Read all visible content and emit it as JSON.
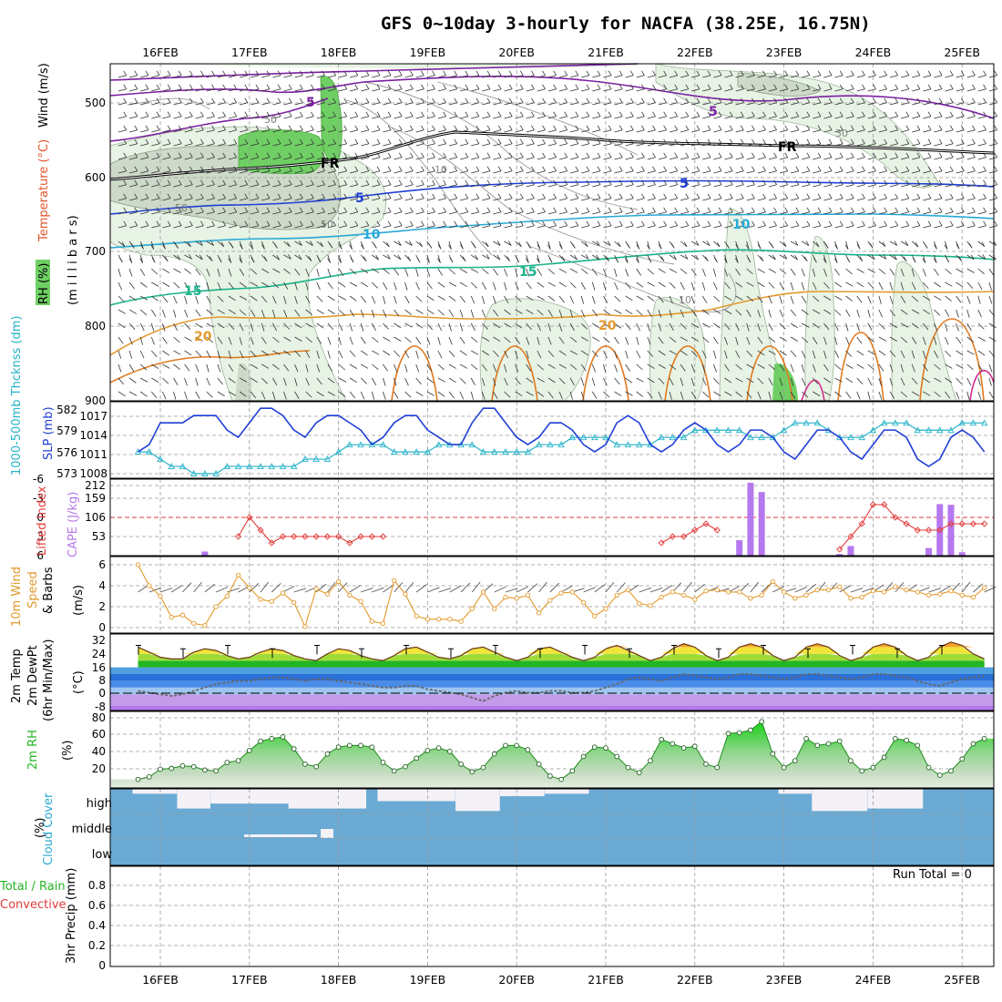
{
  "title": "GFS 0~10day 3-hourly for NACFA (38.25E, 16.75N)",
  "dates": [
    "16FEB",
    "17FEB",
    "18FEB",
    "19FEB",
    "20FEB",
    "21FEB",
    "22FEB",
    "23FEB",
    "24FEB",
    "25FEB"
  ],
  "panels": {
    "upper": {
      "labels": {
        "rh": "RH (%)",
        "temp": "Temperature (°C)",
        "wind": "Wind (m/s)",
        "pres": "(m i l l i b a r s)"
      },
      "yticks": [
        "500",
        "600",
        "700",
        "800",
        "900"
      ],
      "contour_labels": {
        "c5a": "5",
        "c5b": "5",
        "c5c": "5",
        "c5d": "5",
        "fr1": "FR",
        "fr2": "FR",
        "c10a": "10",
        "c10b": "10",
        "c15a": "15",
        "c15b": "15",
        "c20a": "20",
        "c20b": "20",
        "g10a": "10",
        "g10b": "10",
        "g30": "30",
        "g50a": "50",
        "g50b": "50",
        "g50c": "50"
      }
    },
    "slp": {
      "labels": {
        "thick": "1000-500mb Thcknss (dm)",
        "slp": "SLP (mb)"
      },
      "left_ticks": [
        "582",
        "579",
        "576",
        "573"
      ],
      "right_ticks": [
        "1017",
        "1014",
        "1011",
        "1008"
      ]
    },
    "li": {
      "labels": {
        "li": "Lifted Index",
        "cape": "CAPE (J/kg)"
      },
      "left_ticks": [
        "-6",
        "-3",
        "0",
        "3",
        "6"
      ],
      "right_ticks": [
        "212",
        "159",
        "106",
        "53"
      ]
    },
    "wind10": {
      "labels": {
        "a": "10m Wind",
        "b": "Speed",
        "c": "& Barbs",
        "unit": "(m/s)"
      },
      "ticks": [
        "6",
        "4",
        "2",
        "0"
      ]
    },
    "temp2m": {
      "labels": {
        "a": "2m Temp",
        "b": "2m DewPt",
        "c": "(6hr Min/Max)",
        "unit": "(°C)"
      },
      "ticks": [
        "32",
        "24",
        "16",
        "8",
        "0",
        "-8"
      ]
    },
    "rh2m": {
      "labels": {
        "a": "2m RH",
        "unit": "(%)"
      },
      "ticks": [
        "80",
        "60",
        "40",
        "20"
      ]
    },
    "cloud": {
      "labels": {
        "a": "Cloud Cover",
        "unit": "(%)"
      },
      "levels": [
        "high",
        "middle",
        "low"
      ]
    },
    "precip": {
      "labels": {
        "a": "Total / Rain",
        "b": "Convective",
        "c": "3hr Precip (mm)"
      },
      "ticks": [
        "0.8",
        "0.6",
        "0.4",
        "0.2",
        "0"
      ],
      "run_total": "Run Total = 0"
    }
  },
  "colors": {
    "slp": "#1f3fd6",
    "thick": "#27b3c9",
    "li": "#e33b3b",
    "cape": "#b678ee",
    "wind": "#e3992b",
    "rh": "#22b622",
    "cloud": "#6aaad4"
  },
  "chart_data": [
    {
      "type": "line",
      "name": "SLP",
      "x_start": "15FEB 18Z",
      "x_step_hours": 3,
      "ylabel": "SLP (mb)",
      "ylim": [
        1008,
        1018
      ],
      "values": [
        1011,
        1012,
        1015,
        1015,
        1015,
        1016,
        1016,
        1016,
        1014,
        1013,
        1015,
        1017,
        1017,
        1016,
        1014,
        1013,
        1015,
        1016,
        1016,
        1015,
        1014,
        1012,
        1013,
        1015,
        1016,
        1016,
        1014,
        1013,
        1012,
        1012,
        1015,
        1017,
        1017,
        1015,
        1013,
        1012,
        1013,
        1015,
        1015,
        1014,
        1012,
        1011,
        1012,
        1015,
        1016,
        1015,
        1012,
        1011,
        1012,
        1014,
        1015,
        1014,
        1012,
        1011,
        1012,
        1014,
        1014,
        1013,
        1011,
        1010,
        1012,
        1014,
        1014,
        1013,
        1011,
        1010,
        1012,
        1014,
        1014,
        1013,
        1010,
        1009,
        1010,
        1013,
        1014,
        1013,
        1011,
        1009,
        1011,
        1013,
        1014,
        1013,
        1011,
        1009
      ]
    },
    {
      "type": "line",
      "name": "1000-500mb Thickness",
      "x_start": "15FEB 18Z",
      "x_step_hours": 3,
      "ylabel": "Thcknss (dm)",
      "ylim": [
        573,
        582.5
      ],
      "values": [
        576,
        576,
        575,
        574,
        574,
        573,
        573,
        573,
        574,
        574,
        574,
        574,
        574,
        574,
        574,
        575,
        575,
        575,
        576,
        577,
        577,
        577,
        577,
        576,
        576,
        576,
        576,
        577,
        577,
        577,
        577,
        576,
        576,
        576,
        576,
        576,
        577,
        577,
        577,
        578,
        578,
        578,
        578,
        577,
        577,
        577,
        577,
        578,
        578,
        578,
        579,
        579,
        579,
        579,
        579,
        578,
        578,
        578,
        579,
        580,
        580,
        580,
        579,
        578,
        578,
        578,
        579,
        580,
        580,
        580,
        579,
        579,
        579,
        579,
        580,
        580,
        580,
        580,
        579,
        579,
        579,
        578,
        579,
        579
      ]
    },
    {
      "type": "line",
      "name": "Lifted Index",
      "x_start": "15FEB 18Z",
      "x_step_hours": 3,
      "ylabel": "Lifted Index",
      "ylim": [
        -6,
        6
      ],
      "values": [
        6,
        6,
        6,
        6,
        6,
        6,
        6,
        6,
        6,
        3,
        0,
        2,
        4,
        3,
        3,
        3,
        3,
        3,
        3,
        4,
        3,
        3,
        3,
        6,
        6,
        6,
        6,
        6,
        6,
        6,
        6,
        6,
        6,
        6,
        6,
        6,
        6,
        6,
        6,
        6,
        6,
        6,
        6,
        6,
        6,
        6,
        6,
        4,
        3,
        3,
        2,
        1,
        2,
        6,
        6,
        6,
        6,
        6,
        6,
        6,
        6,
        6,
        6,
        5,
        3,
        1,
        -2,
        -2,
        0,
        1,
        2,
        2,
        2,
        1,
        1,
        1,
        1,
        1,
        1,
        1,
        0,
        0,
        1,
        2
      ]
    },
    {
      "type": "bar",
      "name": "CAPE",
      "ylabel": "CAPE (J/kg)",
      "ylim": [
        0,
        212
      ],
      "bars": [
        {
          "x": "16FEB 12Z",
          "v": 12
        },
        {
          "x": "22FEB 12Z",
          "v": 45
        },
        {
          "x": "22FEB 15Z",
          "v": 212
        },
        {
          "x": "22FEB 18Z",
          "v": 185
        },
        {
          "x": "23FEB 15Z",
          "v": 5
        },
        {
          "x": "23FEB 18Z",
          "v": 28
        },
        {
          "x": "24FEB 15Z",
          "v": 22
        },
        {
          "x": "24FEB 18Z",
          "v": 150
        },
        {
          "x": "24FEB 21Z",
          "v": 148
        },
        {
          "x": "25FEB 00Z",
          "v": 10
        }
      ]
    },
    {
      "type": "line",
      "name": "10m Wind Speed",
      "x_start": "15FEB 18Z",
      "x_step_hours": 3,
      "ylabel": "(m/s)",
      "ylim": [
        0,
        6.5
      ],
      "values": [
        6,
        4,
        3,
        1,
        1.2,
        0.4,
        0.2,
        2,
        3,
        5,
        3.8,
        2.7,
        2.5,
        3.3,
        2.4,
        0.1,
        3.7,
        3.2,
        4.4,
        3.1,
        2.5,
        0.6,
        0.4,
        4.5,
        3.2,
        1.1,
        0.8,
        0.8,
        0.8,
        0.6,
        1.8,
        3.4,
        1.8,
        2.9,
        2.8,
        3.1,
        1.4,
        2.6,
        3.3,
        3.4,
        2.4,
        1.1,
        1.8,
        3.1,
        3.6,
        2.3,
        2.1,
        2.9,
        3.4,
        3.1,
        2.7,
        3.5,
        3.6,
        3.4,
        3.4,
        2.8,
        3.1,
        4.4,
        3.4,
        2.8,
        3.1,
        3.6,
        3.6,
        3.9,
        2.8,
        2.9,
        3.5,
        3.4,
        3.9,
        3.6,
        3.4,
        3.1,
        3.2,
        3.5,
        3.1,
        2.9,
        3.8,
        3.6,
        3.2,
        2.9,
        2.8,
        1.9,
        3,
        3.4
      ]
    },
    {
      "type": "area",
      "name": "2m Temperature",
      "x_start": "15FEB 18Z",
      "x_step_hours": 3,
      "ylabel": "(°C)",
      "ylim": [
        -8,
        32
      ],
      "values": [
        28,
        25,
        22,
        21,
        21,
        25,
        27,
        26,
        23,
        21,
        22,
        25,
        27,
        26,
        23,
        21,
        20,
        24,
        27,
        26,
        23,
        21,
        20,
        23,
        27,
        28,
        25,
        22,
        21,
        23,
        27,
        28,
        25,
        22,
        20,
        22,
        27,
        28,
        25,
        22,
        20,
        22,
        27,
        29,
        26,
        23,
        20,
        22,
        27,
        30,
        28,
        23,
        20,
        22,
        28,
        30,
        28,
        23,
        20,
        22,
        28,
        30,
        28,
        23,
        20,
        22,
        28,
        30,
        28,
        23,
        20,
        22,
        28,
        31,
        29,
        24,
        21,
        22,
        24,
        24,
        23,
        22,
        21,
        24
      ]
    },
    {
      "type": "line",
      "name": "2m Dew Point",
      "x_start": "15FEB 18Z",
      "x_step_hours": 3,
      "ylabel": "(°C)",
      "ylim": [
        -8,
        32
      ],
      "values": [
        2,
        1,
        0,
        -1,
        0,
        2,
        4,
        6,
        7,
        8,
        8,
        9,
        10,
        10,
        9,
        8,
        9,
        9,
        8,
        7,
        6,
        5,
        4,
        4,
        5,
        5,
        3,
        2,
        1,
        0,
        -2,
        -4,
        -1,
        1,
        2,
        1,
        1,
        2,
        2,
        1,
        1,
        2,
        4,
        6,
        9,
        10,
        9,
        8,
        10,
        12,
        11,
        10,
        9,
        10,
        12,
        12,
        11,
        10,
        9,
        10,
        12,
        12,
        11,
        10,
        9,
        10,
        12,
        12,
        11,
        10,
        8,
        6,
        5,
        7,
        9,
        10,
        11,
        12,
        12,
        12,
        11,
        10,
        9,
        8
      ]
    },
    {
      "type": "area",
      "name": "2m RH",
      "x_start": "15FEB 18Z",
      "x_step_hours": 3,
      "ylabel": "(%)",
      "ylim": [
        0,
        90
      ],
      "values": [
        10,
        13,
        22,
        23,
        26,
        25,
        21,
        20,
        30,
        32,
        44,
        55,
        58,
        60,
        46,
        28,
        25,
        40,
        48,
        50,
        50,
        48,
        30,
        20,
        25,
        35,
        44,
        47,
        43,
        28,
        19,
        24,
        40,
        50,
        50,
        45,
        28,
        14,
        10,
        20,
        37,
        48,
        47,
        37,
        24,
        18,
        32,
        57,
        52,
        47,
        49,
        28,
        24,
        64,
        65,
        68,
        78,
        40,
        24,
        32,
        58,
        50,
        52,
        55,
        32,
        20,
        24,
        36,
        58,
        56,
        50,
        24,
        15,
        20,
        34,
        52,
        58,
        56,
        44,
        25,
        25,
        35,
        50,
        24
      ]
    },
    {
      "type": "bar",
      "name": "High Cloud Cover",
      "ylabel": "(%)",
      "ylim": [
        0,
        100
      ],
      "segments": [
        {
          "from": "15FEB 18Z",
          "to": "16FEB 03Z",
          "v": 20
        },
        {
          "from": "16FEB 06Z",
          "to": "16FEB 12Z",
          "v": 80
        },
        {
          "from": "16FEB 15Z",
          "to": "17FEB 12Z",
          "v": 60
        },
        {
          "from": "17FEB 12Z",
          "to": "18FEB 06Z",
          "v": 80
        },
        {
          "from": "18FEB 12Z",
          "to": "19FEB 06Z",
          "v": 50
        },
        {
          "from": "19FEB 09Z",
          "to": "19FEB 18Z",
          "v": 90
        },
        {
          "from": "19FEB 21Z",
          "to": "20FEB 06Z",
          "v": 30
        },
        {
          "from": "20FEB 09Z",
          "to": "20FEB 18Z",
          "v": 20
        },
        {
          "from": "23FEB 00Z",
          "to": "23FEB 06Z",
          "v": 20
        },
        {
          "from": "23FEB 09Z",
          "to": "23FEB 21Z",
          "v": 90
        },
        {
          "from": "24FEB 00Z",
          "to": "24FEB 12Z",
          "v": 80
        }
      ]
    },
    {
      "type": "bar",
      "name": "3hr Precip",
      "ylabel": "3hr Precip (mm)",
      "ylim": [
        0,
        1
      ],
      "values": []
    }
  ]
}
